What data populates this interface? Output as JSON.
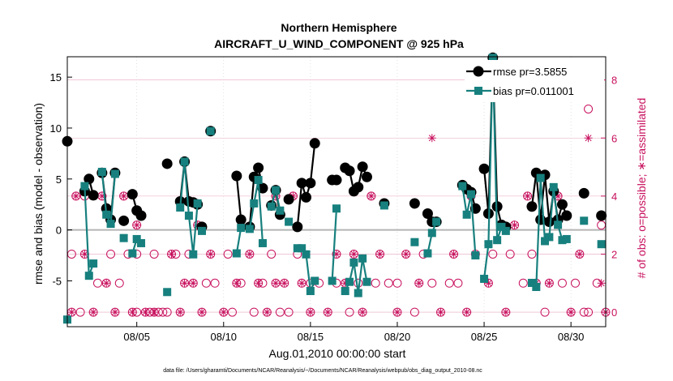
{
  "chart_data": {
    "type": "line",
    "title": "Northern Hemisphere",
    "subtitle": "AIRCRAFT_U_WIND_COMPONENT @ 925 hPa",
    "xlabel": "Aug.01,2010 00:00:00 start",
    "ylabel": "rmse and bias (model - observation)",
    "y2label": "# of obs: o=possible; ∗=assimilated",
    "xlim": [
      1,
      32
    ],
    "ylim": [
      -9.5,
      17
    ],
    "y2lim": [
      -0.5,
      8.8
    ],
    "xtick_values": [
      5,
      10,
      15,
      20,
      25,
      30
    ],
    "xtick_labels": [
      "08/05",
      "08/10",
      "08/15",
      "08/20",
      "08/25",
      "08/30"
    ],
    "yticks": [
      -5,
      0,
      5,
      10,
      15
    ],
    "y2ticks": [
      0,
      2,
      4,
      6,
      8
    ],
    "footnote": "data file: /Users/gharamti/Documents/NCAR/Reanalysis/~/Documents/NCAR/Reanalysis/webpub/obs_diag_output_2010-08.nc",
    "colors": {
      "rmse": "#000000",
      "bias": "#17807e",
      "obs": "#c8115e",
      "zero": "#b4b4b4",
      "grid": "#e6a7bf"
    },
    "legend": [
      {
        "name": "rmse",
        "label": "rmse pr=3.5855"
      },
      {
        "name": "bias",
        "label": "bias pr=0.011001"
      }
    ],
    "series": [
      {
        "name": "rmse",
        "marker": "circle",
        "segments": [
          [
            [
              1.0,
              8.7
            ]
          ],
          [
            [
              2.0,
              3.8
            ],
            [
              2.25,
              5.0
            ],
            [
              2.5,
              3.4
            ]
          ],
          [
            [
              3.0,
              5.6
            ],
            [
              3.25,
              2.1
            ],
            [
              3.5,
              1.0
            ],
            [
              3.75,
              5.6
            ]
          ],
          [
            [
              4.25,
              0.9
            ]
          ],
          [
            [
              4.75,
              3.5
            ],
            [
              5.0,
              1.9
            ],
            [
              5.25,
              1.4
            ]
          ],
          [
            [
              6.75,
              6.5
            ]
          ],
          [
            [
              7.5,
              2.8
            ],
            [
              7.75,
              6.7
            ],
            [
              8.0,
              2.8
            ],
            [
              8.25,
              2.7
            ],
            [
              8.5,
              2.5
            ]
          ],
          [
            [
              8.75,
              0.3
            ]
          ],
          [
            [
              9.25,
              9.7
            ]
          ],
          [
            [
              10.75,
              5.3
            ],
            [
              11.0,
              1.0
            ]
          ],
          [
            [
              11.5,
              0.3
            ],
            [
              11.75,
              5.2
            ],
            [
              12.0,
              6.1
            ],
            [
              12.25,
              4.1
            ]
          ],
          [
            [
              12.75,
              2.4
            ],
            [
              13.0,
              3.9
            ],
            [
              13.25,
              1.5
            ]
          ],
          [
            [
              13.75,
              3.0
            ]
          ],
          [
            [
              14.25,
              0.3
            ],
            [
              14.5,
              4.6
            ],
            [
              14.75,
              3.2
            ],
            [
              15.0,
              4.6
            ],
            [
              15.25,
              8.5
            ]
          ],
          [
            [
              16.25,
              4.9
            ],
            [
              16.5,
              4.9
            ]
          ],
          [
            [
              17.0,
              6.1
            ],
            [
              17.25,
              5.8
            ],
            [
              17.5,
              3.8
            ],
            [
              17.75,
              4.2
            ],
            [
              18.0,
              6.2
            ],
            [
              18.25,
              5.2
            ]
          ],
          [
            [
              19.25,
              2.6
            ]
          ],
          [
            [
              21.0,
              2.6
            ]
          ],
          [
            [
              21.75,
              1.6
            ],
            [
              22.0,
              0.8
            ],
            [
              22.25,
              0.8
            ]
          ],
          [
            [
              23.75,
              4.4
            ],
            [
              24.0,
              4.0
            ],
            [
              24.25,
              3.7
            ],
            [
              24.5,
              2.1
            ]
          ],
          [
            [
              25.0,
              6.0
            ],
            [
              25.25,
              1.6
            ],
            [
              25.5,
              16.9
            ],
            [
              25.75,
              2.3
            ],
            [
              26.0,
              0.5
            ],
            [
              26.25,
              0.3
            ]
          ],
          [
            [
              27.75,
              2.3
            ],
            [
              28.0,
              5.6
            ],
            [
              28.25,
              1.0
            ],
            [
              28.5,
              5.4
            ],
            [
              28.75,
              0.8
            ],
            [
              29.0,
              3.8
            ],
            [
              29.25,
              1.0
            ],
            [
              29.5,
              2.5
            ],
            [
              29.75,
              1.4
            ]
          ],
          [
            [
              30.75,
              3.6
            ]
          ],
          [
            [
              31.75,
              1.4
            ]
          ]
        ]
      },
      {
        "name": "bias",
        "marker": "square",
        "segments": [
          [
            [
              1.0,
              -8.8
            ]
          ],
          [
            [
              2.0,
              4.3
            ],
            [
              2.25,
              -4.5
            ],
            [
              2.5,
              -3.3
            ]
          ],
          [
            [
              3.0,
              5.7
            ],
            [
              3.25,
              1.5
            ],
            [
              3.5,
              0.6
            ],
            [
              3.75,
              5.5
            ]
          ],
          [
            [
              4.25,
              -0.8
            ]
          ],
          [
            [
              4.75,
              -2.3
            ],
            [
              5.0,
              -0.9
            ],
            [
              5.25,
              -1.3
            ]
          ],
          [
            [
              6.75,
              -6.1
            ]
          ],
          [
            [
              7.5,
              2.2
            ],
            [
              7.75,
              6.7
            ],
            [
              8.0,
              1.4
            ],
            [
              8.25,
              -2.4
            ],
            [
              8.5,
              2.6
            ]
          ],
          [
            [
              8.75,
              -0.1
            ]
          ],
          [
            [
              9.25,
              9.7
            ]
          ],
          [
            [
              10.75,
              -2.3
            ],
            [
              11.0,
              0.2
            ]
          ],
          [
            [
              11.5,
              0.1
            ],
            [
              11.75,
              2.6
            ],
            [
              12.0,
              4.9
            ],
            [
              12.25,
              -1.3
            ]
          ],
          [
            [
              12.75,
              2.3
            ],
            [
              13.0,
              3.9
            ],
            [
              13.25,
              1.9
            ]
          ],
          [
            [
              13.75,
              0.8
            ]
          ],
          [
            [
              14.25,
              -1.8
            ],
            [
              14.5,
              -1.8
            ],
            [
              14.75,
              -2.4
            ],
            [
              15.0,
              -6.0
            ],
            [
              15.25,
              -5.0
            ]
          ],
          [
            [
              16.25,
              -5.0
            ],
            [
              16.5,
              2.1
            ]
          ],
          [
            [
              17.0,
              -6.0
            ],
            [
              17.25,
              -5.1
            ],
            [
              17.5,
              -3.2
            ],
            [
              17.75,
              -6.2
            ],
            [
              18.0,
              -2.8
            ],
            [
              18.25,
              -5.1
            ]
          ],
          [
            [
              19.25,
              2.4
            ]
          ],
          [
            [
              21.0,
              -1.2
            ]
          ],
          [
            [
              21.75,
              -2.3
            ],
            [
              22.0,
              -0.3
            ],
            [
              22.25,
              0.8
            ]
          ],
          [
            [
              23.75,
              4.3
            ],
            [
              24.0,
              1.5
            ],
            [
              24.25,
              3.5
            ],
            [
              24.5,
              -2.5
            ]
          ],
          [
            [
              25.0,
              -4.8
            ],
            [
              25.25,
              -1.4
            ],
            [
              25.5,
              16.9
            ],
            [
              25.75,
              -1.0
            ],
            [
              26.0,
              0.3
            ],
            [
              26.25,
              -0.1
            ]
          ],
          [
            [
              27.75,
              -5.2
            ],
            [
              28.0,
              -5.6
            ],
            [
              28.25,
              5.1
            ],
            [
              28.5,
              -1.1
            ],
            [
              28.75,
              -0.7
            ],
            [
              29.0,
              4.2
            ],
            [
              29.25,
              0.5
            ],
            [
              29.5,
              -1.0
            ],
            [
              29.75,
              -0.9
            ]
          ],
          [
            [
              30.75,
              0.9
            ]
          ],
          [
            [
              31.75,
              -1.4
            ]
          ]
        ]
      }
    ],
    "obs_possible": [
      [
        1.25,
        0
      ],
      [
        1.25,
        2
      ],
      [
        1.5,
        4
      ],
      [
        1.75,
        0
      ],
      [
        2,
        4
      ],
      [
        2,
        2
      ],
      [
        2.5,
        0
      ],
      [
        2.75,
        1
      ],
      [
        3,
        4
      ],
      [
        3.25,
        1
      ],
      [
        3.5,
        2
      ],
      [
        3.75,
        0
      ],
      [
        4,
        1
      ],
      [
        4.25,
        4
      ],
      [
        4.5,
        2
      ],
      [
        4.75,
        0
      ],
      [
        5,
        0
      ],
      [
        5,
        2
      ],
      [
        5,
        3
      ],
      [
        5.5,
        0
      ],
      [
        5.75,
        0
      ],
      [
        6,
        0
      ],
      [
        6,
        2
      ],
      [
        6.25,
        0
      ],
      [
        6.5,
        0
      ],
      [
        6.75,
        0
      ],
      [
        7,
        2
      ],
      [
        7.25,
        2
      ],
      [
        7.5,
        0
      ],
      [
        7.75,
        1
      ],
      [
        8,
        2
      ],
      [
        8.25,
        1
      ],
      [
        8.5,
        3
      ],
      [
        8.75,
        0
      ],
      [
        9,
        1
      ],
      [
        9.25,
        2
      ],
      [
        9.5,
        1
      ],
      [
        10,
        0
      ],
      [
        10.25,
        2
      ],
      [
        10.5,
        0
      ],
      [
        10.75,
        1
      ],
      [
        11,
        1
      ],
      [
        11.5,
        2
      ],
      [
        11.75,
        0
      ],
      [
        12,
        1
      ],
      [
        12.25,
        1
      ],
      [
        12.5,
        0
      ],
      [
        12.75,
        2
      ],
      [
        13,
        1
      ],
      [
        13,
        4
      ],
      [
        13.25,
        0
      ],
      [
        13.5,
        1
      ],
      [
        13.75,
        0
      ],
      [
        14,
        4
      ],
      [
        14.25,
        2
      ],
      [
        14.5,
        1
      ],
      [
        15,
        1
      ],
      [
        15,
        0
      ],
      [
        15.5,
        1
      ],
      [
        16,
        0
      ],
      [
        16.5,
        2
      ],
      [
        16.5,
        1
      ],
      [
        17,
        1
      ],
      [
        17.25,
        0
      ],
      [
        17.5,
        2
      ],
      [
        17.75,
        1
      ],
      [
        18,
        0
      ],
      [
        18.5,
        4
      ],
      [
        18.75,
        1
      ],
      [
        19,
        2
      ],
      [
        19.5,
        1
      ],
      [
        20,
        0
      ],
      [
        20,
        1
      ],
      [
        20.5,
        2
      ],
      [
        21,
        0
      ],
      [
        21.25,
        1
      ],
      [
        21.5,
        2
      ],
      [
        22,
        1
      ],
      [
        22.5,
        0
      ],
      [
        23,
        1
      ],
      [
        23.25,
        2
      ],
      [
        23.5,
        1
      ],
      [
        24,
        0
      ],
      [
        24.25,
        4
      ],
      [
        24.5,
        2
      ],
      [
        25.25,
        1
      ],
      [
        25.5,
        2
      ],
      [
        26.25,
        0
      ],
      [
        26.5,
        2
      ],
      [
        26.75,
        3
      ],
      [
        27.25,
        1
      ],
      [
        27.5,
        4
      ],
      [
        27.75,
        2
      ],
      [
        28,
        1
      ],
      [
        28.5,
        0
      ],
      [
        28.75,
        1
      ],
      [
        29.25,
        4
      ],
      [
        29.5,
        1
      ],
      [
        30,
        0
      ],
      [
        30.25,
        1
      ],
      [
        30.5,
        2
      ],
      [
        30.75,
        0
      ],
      [
        31,
        0
      ],
      [
        31,
        7
      ],
      [
        31.5,
        1
      ],
      [
        31.75,
        3
      ],
      [
        32,
        0
      ]
    ],
    "obs_assimilated": [
      [
        1.25,
        0
      ],
      [
        1.5,
        4
      ],
      [
        2,
        2
      ],
      [
        2.5,
        0
      ],
      [
        3,
        4
      ],
      [
        3.25,
        1
      ],
      [
        3.75,
        0
      ],
      [
        4.25,
        4
      ],
      [
        4.75,
        0
      ],
      [
        5,
        3
      ],
      [
        5.5,
        0
      ],
      [
        6,
        0
      ],
      [
        7,
        2
      ],
      [
        7.5,
        0
      ],
      [
        7.75,
        1
      ],
      [
        8.25,
        1
      ],
      [
        8.5,
        3
      ],
      [
        8.75,
        0
      ],
      [
        9.25,
        2
      ],
      [
        10,
        0
      ],
      [
        10.75,
        1
      ],
      [
        11.5,
        2
      ],
      [
        12,
        1
      ],
      [
        12.5,
        0
      ],
      [
        13,
        1
      ],
      [
        13,
        4
      ],
      [
        13.5,
        1
      ],
      [
        14,
        4
      ],
      [
        14.5,
        1
      ],
      [
        15,
        0
      ],
      [
        16,
        0
      ],
      [
        16.5,
        2
      ],
      [
        17,
        1
      ],
      [
        17.5,
        2
      ],
      [
        18,
        0
      ],
      [
        18.5,
        4
      ],
      [
        19,
        2
      ],
      [
        20,
        0
      ],
      [
        20.5,
        2
      ],
      [
        21.25,
        1
      ],
      [
        22,
        6
      ],
      [
        22.5,
        0
      ],
      [
        23.25,
        2
      ],
      [
        24,
        0
      ],
      [
        24.25,
        4
      ],
      [
        25.25,
        1
      ],
      [
        26.25,
        0
      ],
      [
        26.75,
        3
      ],
      [
        27.5,
        4
      ],
      [
        28,
        1
      ],
      [
        28.75,
        1
      ],
      [
        29.25,
        4
      ],
      [
        30,
        0
      ],
      [
        30.5,
        2
      ],
      [
        31,
        6
      ],
      [
        31.75,
        1
      ],
      [
        32,
        0
      ]
    ]
  }
}
